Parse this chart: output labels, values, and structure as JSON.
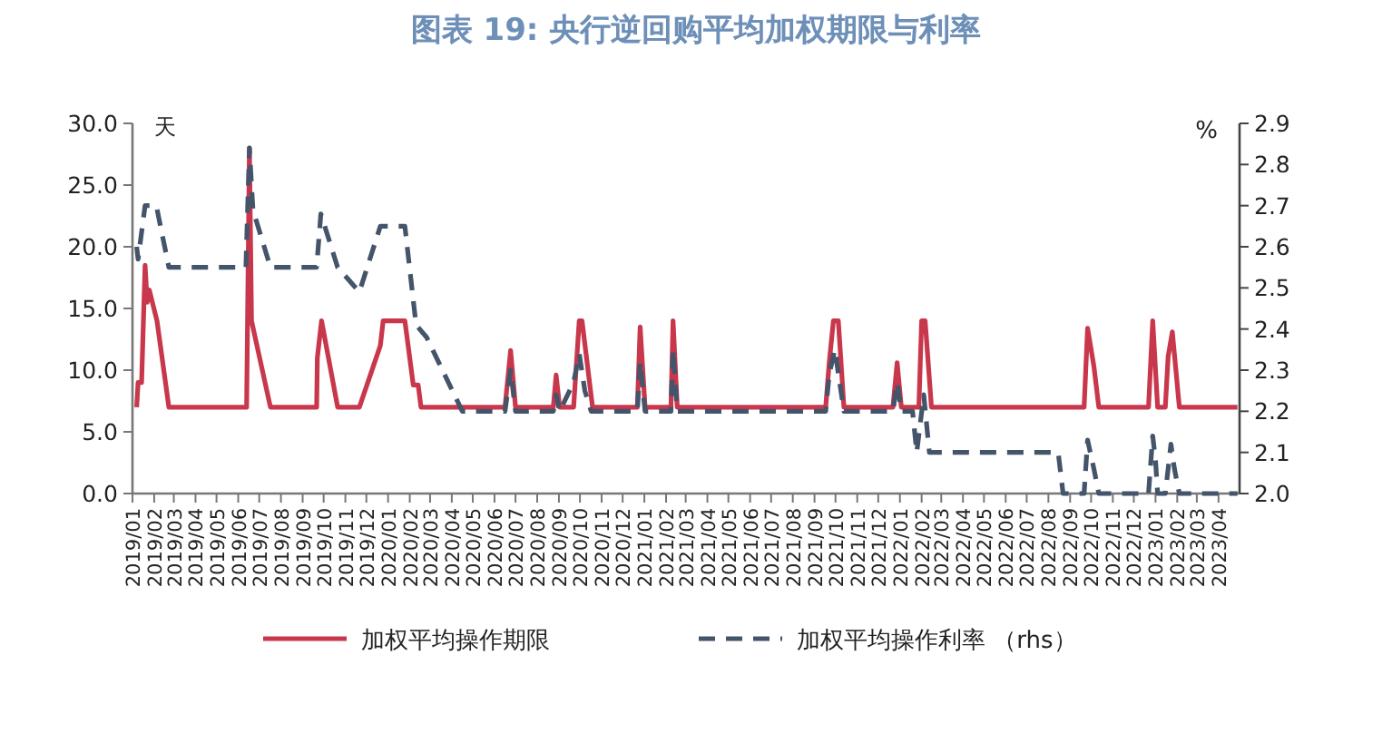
{
  "chart_data": {
    "type": "line",
    "title": "图表 19: 央行逆回购平均加权期限与利率",
    "ylabel": "天",
    "y2label": "%",
    "legend": "bottom",
    "grid": false,
    "xlim": [
      "2019-01",
      "2023-05"
    ],
    "xticks": [
      {
        "value": "2019-01",
        "label": "2019/01"
      },
      {
        "value": "2019-02",
        "label": "2019/02"
      },
      {
        "value": "2019-03",
        "label": "2019/03"
      },
      {
        "value": "2019-04",
        "label": "2019/04"
      },
      {
        "value": "2019-05",
        "label": "2019/05"
      },
      {
        "value": "2019-06",
        "label": "2019/06"
      },
      {
        "value": "2019-07",
        "label": "2019/07"
      },
      {
        "value": "2019-08",
        "label": "2019/08"
      },
      {
        "value": "2019-09",
        "label": "2019/09"
      },
      {
        "value": "2019-10",
        "label": "2019/10"
      },
      {
        "value": "2019-11",
        "label": "2019/11"
      },
      {
        "value": "2019-12",
        "label": "2019/12"
      },
      {
        "value": "2020-01",
        "label": "2020/01"
      },
      {
        "value": "2020-02",
        "label": "2020/02"
      },
      {
        "value": "2020-03",
        "label": "2020/03"
      },
      {
        "value": "2020-04",
        "label": "2020/04"
      },
      {
        "value": "2020-05",
        "label": "2020/05"
      },
      {
        "value": "2020-06",
        "label": "2020/06"
      },
      {
        "value": "2020-07",
        "label": "2020/07"
      },
      {
        "value": "2020-08",
        "label": "2020/08"
      },
      {
        "value": "2020-09",
        "label": "2020/09"
      },
      {
        "value": "2020-10",
        "label": "2020/10"
      },
      {
        "value": "2020-11",
        "label": "2020/11"
      },
      {
        "value": "2020-12",
        "label": "2020/12"
      },
      {
        "value": "2021-01",
        "label": "2021/01"
      },
      {
        "value": "2021-02",
        "label": "2021/02"
      },
      {
        "value": "2021-03",
        "label": "2021/03"
      },
      {
        "value": "2021-04",
        "label": "2021/04"
      },
      {
        "value": "2021-05",
        "label": "2021/05"
      },
      {
        "value": "2021-06",
        "label": "2021/06"
      },
      {
        "value": "2021-07",
        "label": "2021/07"
      },
      {
        "value": "2021-08",
        "label": "2021/08"
      },
      {
        "value": "2021-09",
        "label": "2021/09"
      },
      {
        "value": "2021-10",
        "label": "2021/10"
      },
      {
        "value": "2021-11",
        "label": "2021/11"
      },
      {
        "value": "2021-12",
        "label": "2021/12"
      },
      {
        "value": "2022-01",
        "label": "2022/01"
      },
      {
        "value": "2022-02",
        "label": "2022/02"
      },
      {
        "value": "2022-03",
        "label": "2022/03"
      },
      {
        "value": "2022-04",
        "label": "2022/04"
      },
      {
        "value": "2022-05",
        "label": "2022/05"
      },
      {
        "value": "2022-06",
        "label": "2022/06"
      },
      {
        "value": "2022-07",
        "label": "2022/07"
      },
      {
        "value": "2022-08",
        "label": "2022/08"
      },
      {
        "value": "2022-09",
        "label": "2022/09"
      },
      {
        "value": "2022-10",
        "label": "2022/10"
      },
      {
        "value": "2022-11",
        "label": "2022/11"
      },
      {
        "value": "2022-12",
        "label": "2022/12"
      },
      {
        "value": "2023-01",
        "label": "2023/01"
      },
      {
        "value": "2023-02",
        "label": "2023/02"
      },
      {
        "value": "2023-03",
        "label": "2023/03"
      },
      {
        "value": "2023-04",
        "label": "2023/04"
      }
    ],
    "ylim": [
      0,
      30
    ],
    "yticks": [
      {
        "value": 0,
        "label": "0.0"
      },
      {
        "value": 5,
        "label": "5.0"
      },
      {
        "value": 10,
        "label": "10.0"
      },
      {
        "value": 15,
        "label": "15.0"
      },
      {
        "value": 20,
        "label": "20.0"
      },
      {
        "value": 25,
        "label": "25.0"
      },
      {
        "value": 30,
        "label": "30.0"
      }
    ],
    "y2lim": [
      2.0,
      2.9
    ],
    "y2ticks": [
      {
        "value": 2.0,
        "label": "2.0"
      },
      {
        "value": 2.1,
        "label": "2.1"
      },
      {
        "value": 2.2,
        "label": "2.2"
      },
      {
        "value": 2.3,
        "label": "2.3"
      },
      {
        "value": 2.4,
        "label": "2.4"
      },
      {
        "value": 2.5,
        "label": "2.5"
      },
      {
        "value": 2.6,
        "label": "2.6"
      },
      {
        "value": 2.7,
        "label": "2.7"
      },
      {
        "value": 2.8,
        "label": "2.8"
      },
      {
        "value": 2.9,
        "label": "2.9"
      }
    ],
    "series": [
      {
        "name": "加权平均操作期限",
        "color": "#c8374b",
        "line_style": "solid",
        "x": [
          "2019-01-07",
          "2019-01-09",
          "2019-01-14",
          "2019-01-19",
          "2019-01-22",
          "2019-01-25",
          "2019-02-05",
          "2019-02-22",
          "2019-06-13",
          "2019-06-17",
          "2019-06-20",
          "2019-07-17",
          "2019-09-21",
          "2019-09-22",
          "2019-09-28",
          "2019-10-21",
          "2019-11-21",
          "2019-12-21",
          "2019-12-25",
          "2020-01-25",
          "2020-02-06",
          "2020-02-13",
          "2020-02-17",
          "2020-06-16",
          "2020-06-24",
          "2020-07-01",
          "2020-08-24",
          "2020-08-28",
          "2020-09-02",
          "2020-09-22",
          "2020-09-30",
          "2020-10-04",
          "2020-10-19",
          "2020-12-22",
          "2020-12-26",
          "2021-01-02",
          "2021-02-08",
          "2021-02-11",
          "2021-02-17",
          "2021-09-17",
          "2021-09-22",
          "2021-09-28",
          "2021-10-05",
          "2021-10-13",
          "2021-12-22",
          "2021-12-28",
          "2022-01-03",
          "2022-01-28",
          "2022-02-01",
          "2022-02-06",
          "2022-02-15",
          "2022-09-21",
          "2022-09-26",
          "2022-10-05",
          "2022-10-12",
          "2022-12-22",
          "2022-12-28",
          "2023-01-04",
          "2023-01-15",
          "2023-01-19",
          "2023-01-25",
          "2023-02-04",
          "2023-04-28"
        ],
        "values": [
          7.0,
          9.0,
          9.0,
          18.5,
          15.5,
          16.5,
          14.0,
          7.0,
          7.0,
          28.0,
          14.0,
          7.0,
          7.0,
          11.0,
          14.0,
          7.0,
          7.0,
          12.0,
          14.0,
          14.0,
          8.8,
          8.8,
          7.0,
          7.0,
          11.6,
          7.0,
          7.0,
          9.6,
          7.0,
          7.0,
          14.0,
          14.0,
          7.0,
          7.0,
          13.5,
          7.0,
          7.0,
          14.0,
          7.0,
          7.0,
          10.6,
          14.0,
          14.0,
          7.0,
          7.0,
          10.6,
          7.0,
          7.0,
          14.0,
          14.0,
          7.0,
          7.0,
          13.4,
          10.3,
          7.0,
          7.0,
          14.0,
          7.0,
          7.0,
          11.1,
          13.1,
          7.0,
          7.0
        ]
      },
      {
        "name": "加权平均操作利率 （rhs）",
        "color": "#44546a",
        "axis": "y2",
        "line_style": "dashed",
        "x": [
          "2019-01-07",
          "2019-01-09",
          "2019-01-19",
          "2019-02-04",
          "2019-02-22",
          "2019-06-12",
          "2019-06-17",
          "2019-06-22",
          "2019-07-17",
          "2019-09-21",
          "2019-09-27",
          "2019-10-21",
          "2019-11-21",
          "2019-12-21",
          "2020-01-25",
          "2020-02-10",
          "2020-02-25",
          "2020-04-16",
          "2020-06-16",
          "2020-06-24",
          "2020-07-01",
          "2020-08-24",
          "2020-08-28",
          "2020-09-02",
          "2020-09-22",
          "2020-09-30",
          "2020-10-08",
          "2020-10-17",
          "2020-12-22",
          "2020-12-26",
          "2021-01-02",
          "2021-02-08",
          "2021-02-11",
          "2021-02-17",
          "2021-09-17",
          "2021-09-22",
          "2021-09-30",
          "2021-10-13",
          "2021-12-22",
          "2021-12-28",
          "2022-01-03",
          "2022-01-19",
          "2022-01-25",
          "2022-02-04",
          "2022-02-12",
          "2022-08-15",
          "2022-08-22",
          "2022-09-21",
          "2022-09-26",
          "2022-10-05",
          "2022-10-12",
          "2022-12-22",
          "2022-12-28",
          "2023-01-01",
          "2023-01-04",
          "2023-01-15",
          "2023-01-23",
          "2023-01-28",
          "2023-02-04",
          "2023-04-28"
        ],
        "values": [
          2.6,
          2.57,
          2.7,
          2.7,
          2.55,
          2.55,
          2.84,
          2.69,
          2.55,
          2.55,
          2.68,
          2.55,
          2.49,
          2.65,
          2.65,
          2.41,
          2.38,
          2.2,
          2.2,
          2.3,
          2.2,
          2.2,
          2.24,
          2.2,
          2.27,
          2.34,
          2.25,
          2.2,
          2.2,
          2.32,
          2.2,
          2.2,
          2.35,
          2.2,
          2.2,
          2.29,
          2.35,
          2.2,
          2.2,
          2.27,
          2.2,
          2.2,
          2.1,
          2.24,
          2.1,
          2.1,
          2.0,
          2.0,
          2.13,
          2.06,
          2.0,
          2.0,
          2.14,
          2.08,
          2.0,
          2.0,
          2.12,
          2.06,
          2.0,
          2.0
        ]
      }
    ]
  }
}
